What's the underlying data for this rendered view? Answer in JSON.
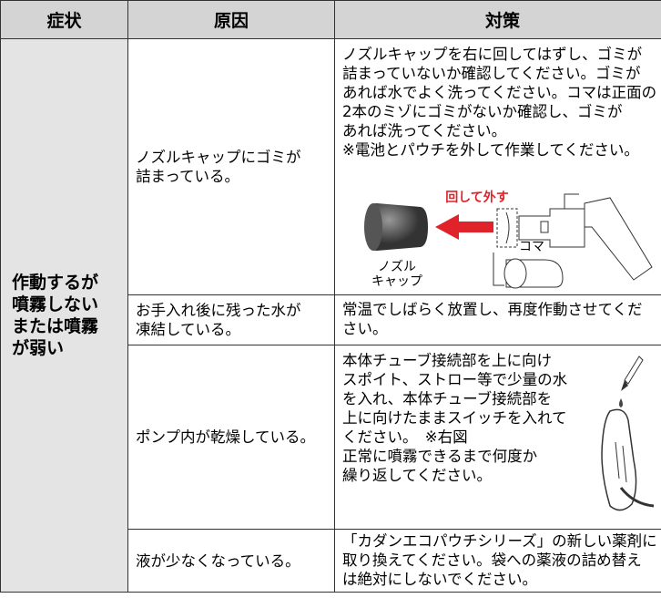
{
  "table": {
    "headers": [
      "症状",
      "原因",
      "対策"
    ],
    "symptom": [
      "作動するが",
      "噴霧しない",
      "または噴霧",
      "が弱い"
    ],
    "rows": [
      {
        "cause": [
          "ノズルキャップにゴミが",
          "詰まっている。"
        ],
        "remedy": [
          "ノズルキャップを右に回してはずし、ゴミが",
          "詰まっていないか確認してください。ゴミが",
          "あれば水でよく洗ってください。コマは正面の",
          "2本のミゾにゴミがないか確認し、ゴミが",
          "あれば洗ってください。",
          "※電池とパウチを外して作業してください。"
        ],
        "figure": {
          "arrow_label": "回して外す",
          "cap_label": [
            "ノズル",
            "キャップ"
          ],
          "koma_label": "コマ"
        }
      },
      {
        "cause": [
          "お手入れ後に残った水が",
          "凍結している。"
        ],
        "remedy": [
          "常温でしばらく放置し、再度作動させてくだ",
          "さい。"
        ]
      },
      {
        "cause": [
          "ポンプ内が乾燥している。"
        ],
        "remedy": [
          "本体チューブ接続部を上に向け",
          "スポイト、ストロー等で少量の水",
          "を入れ、本体チューブ接続部を",
          "上に向けたままスイッチを入れて",
          "ください。　※右図",
          "正常に噴霧できるまで何度か",
          "繰り返してください。"
        ]
      },
      {
        "cause": [
          "液が少なくなっている。"
        ],
        "remedy": [
          "「カダンエコパウチシリーズ」の新しい薬剤に",
          "取り換えてください。袋への薬液の詰め替え",
          "は絶対にしないでください。"
        ]
      }
    ]
  }
}
